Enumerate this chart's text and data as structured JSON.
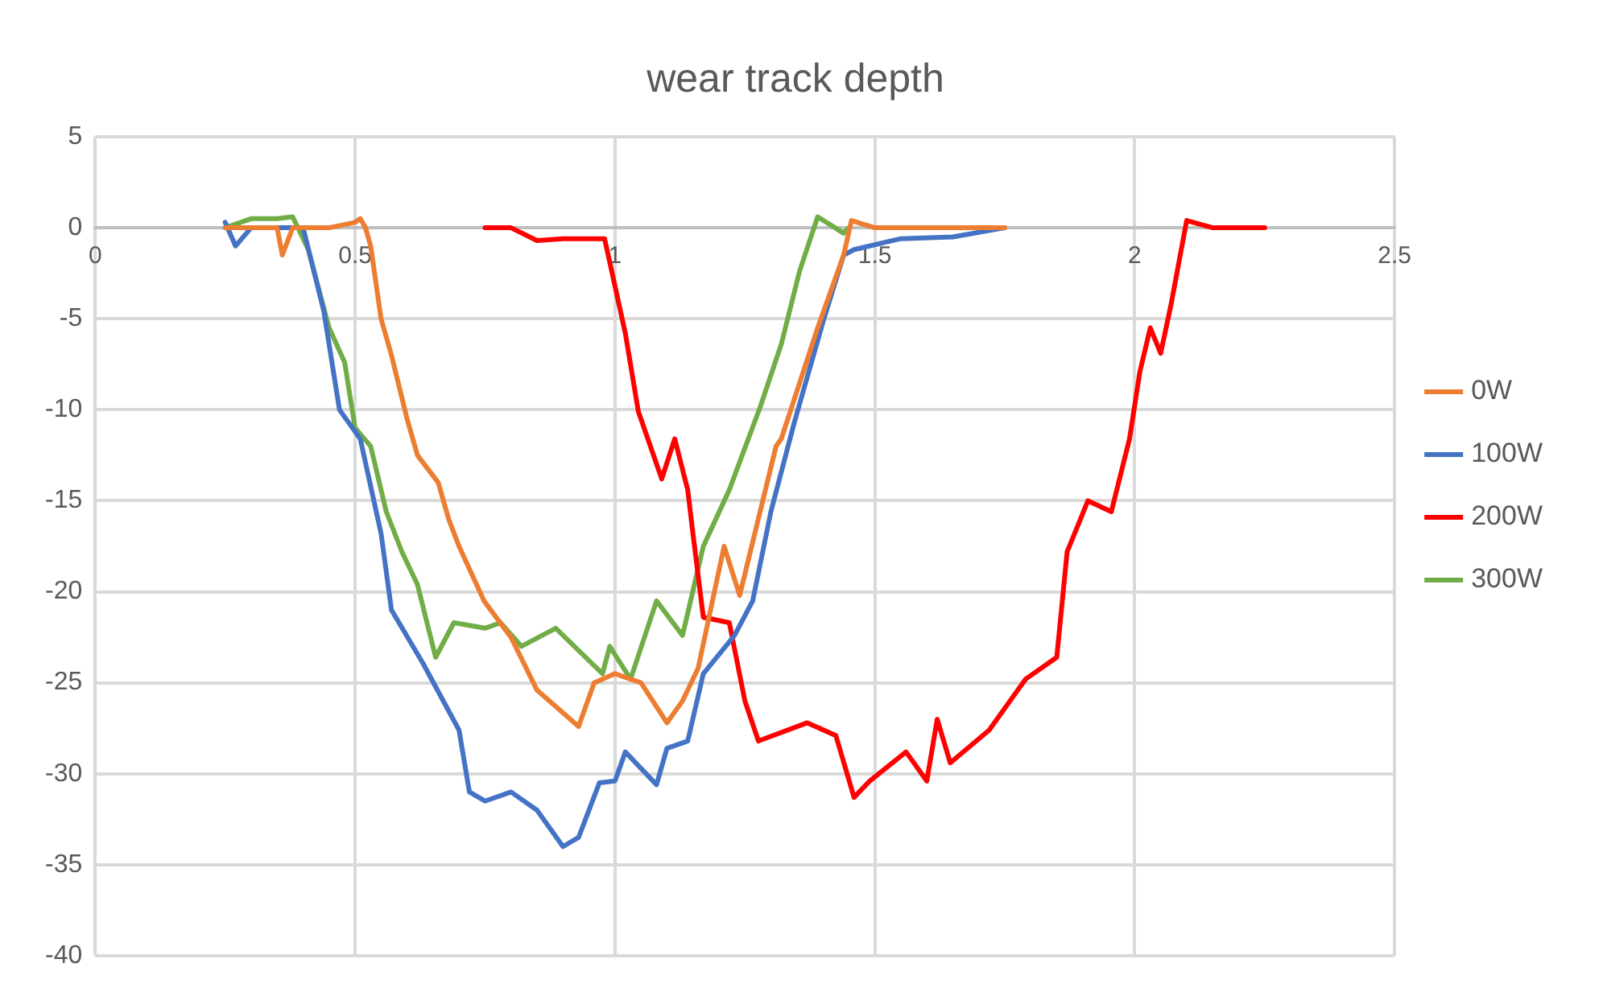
{
  "chart_data": {
    "type": "line",
    "title": "wear track depth",
    "xlim": [
      0,
      2.5
    ],
    "xticks": [
      0,
      0.5,
      1,
      1.5,
      2,
      2.5
    ],
    "ylim": [
      -40,
      5
    ],
    "yticks": [
      5,
      0,
      -5,
      -10,
      -15,
      -20,
      -25,
      -30,
      -35,
      -40
    ],
    "grid": true,
    "legend": "right",
    "marker": "none",
    "line_style": "solid",
    "series": [
      {
        "name": "0W",
        "color": "#ed7d31",
        "x": [
          0.25,
          0.3,
          0.35,
          0.36,
          0.38,
          0.45,
          0.5,
          0.51,
          0.52,
          0.53,
          0.55,
          0.57,
          0.6,
          0.62,
          0.66,
          0.68,
          0.7,
          0.748,
          0.8,
          0.85,
          0.93,
          0.96,
          1.0,
          1.05,
          1.1,
          1.13,
          1.16,
          1.21,
          1.24,
          1.31,
          1.32,
          1.39,
          1.44,
          1.455,
          1.5,
          1.6,
          1.7,
          1.75
        ],
        "values": [
          0,
          0,
          0,
          -1.5,
          0,
          0,
          0.3,
          0.5,
          0,
          -1,
          -5,
          -7,
          -10.5,
          -12.5,
          -14,
          -16,
          -17.5,
          -20.5,
          -22.5,
          -25.4,
          -27.4,
          -25,
          -24.5,
          -25,
          -27.2,
          -26,
          -24.2,
          -17.5,
          -20.2,
          -12,
          -11.6,
          -5.5,
          -1.5,
          0.4,
          0,
          0,
          0,
          0
        ]
      },
      {
        "name": "100W",
        "color": "#4472c4",
        "x": [
          0.25,
          0.27,
          0.3,
          0.35,
          0.4,
          0.44,
          0.47,
          0.51,
          0.55,
          0.57,
          0.63,
          0.7,
          0.72,
          0.75,
          0.8,
          0.85,
          0.9,
          0.93,
          0.97,
          1.0,
          1.02,
          1.08,
          1.1,
          1.14,
          1.17,
          1.23,
          1.265,
          1.3,
          1.345,
          1.4,
          1.44,
          1.46,
          1.55,
          1.65,
          1.75
        ],
        "values": [
          0.3,
          -1,
          0,
          0,
          0,
          -4.6,
          -10,
          -11.6,
          -16.8,
          -21,
          -23.9,
          -27.6,
          -31,
          -31.5,
          -31,
          -32,
          -34,
          -33.5,
          -30.5,
          -30.4,
          -28.8,
          -30.6,
          -28.6,
          -28.2,
          -24.5,
          -22.4,
          -20.5,
          -15.6,
          -10.7,
          -5.2,
          -1.5,
          -1.2,
          -0.6,
          -0.5,
          0
        ]
      },
      {
        "name": "200W",
        "color": "#ff0000",
        "x": [
          0.75,
          0.8,
          0.85,
          0.9,
          0.966,
          0.98,
          1.02,
          1.045,
          1.09,
          1.115,
          1.14,
          1.15,
          1.17,
          1.22,
          1.25,
          1.276,
          1.37,
          1.425,
          1.46,
          1.49,
          1.56,
          1.6,
          1.62,
          1.645,
          1.72,
          1.79,
          1.85,
          1.87,
          1.91,
          1.955,
          1.99,
          2.01,
          2.03,
          2.05,
          2.07,
          2.1,
          2.15,
          2.2,
          2.25
        ],
        "values": [
          0,
          0,
          -0.7,
          -0.6,
          -0.6,
          -0.6,
          -5.8,
          -10.1,
          -13.8,
          -11.6,
          -14.4,
          -16.8,
          -21.4,
          -21.7,
          -26,
          -28.2,
          -27.2,
          -27.9,
          -31.3,
          -30.4,
          -28.8,
          -30.4,
          -27,
          -29.4,
          -27.6,
          -24.8,
          -23.6,
          -17.8,
          -15,
          -15.6,
          -11.6,
          -7.9,
          -5.5,
          -6.9,
          -4.2,
          0.4,
          0,
          0,
          0
        ]
      },
      {
        "name": "300W",
        "color": "#70ad47",
        "x": [
          0.25,
          0.3,
          0.35,
          0.38,
          0.41,
          0.45,
          0.48,
          0.5,
          0.53,
          0.56,
          0.59,
          0.62,
          0.655,
          0.69,
          0.75,
          0.78,
          0.82,
          0.886,
          0.976,
          0.99,
          1.03,
          1.08,
          1.13,
          1.17,
          1.22,
          1.28,
          1.32,
          1.355,
          1.39,
          1.44,
          1.45
        ],
        "values": [
          0,
          0.5,
          0.5,
          0.6,
          -1.2,
          -5.5,
          -7.4,
          -11,
          -12,
          -15.6,
          -17.8,
          -19.6,
          -23.6,
          -21.7,
          -22,
          -21.7,
          -23,
          -22,
          -24.5,
          -23,
          -24.8,
          -20.5,
          -22.4,
          -17.5,
          -14.4,
          -9.8,
          -6.4,
          -2.4,
          0.6,
          -0.3,
          0
        ]
      }
    ]
  }
}
